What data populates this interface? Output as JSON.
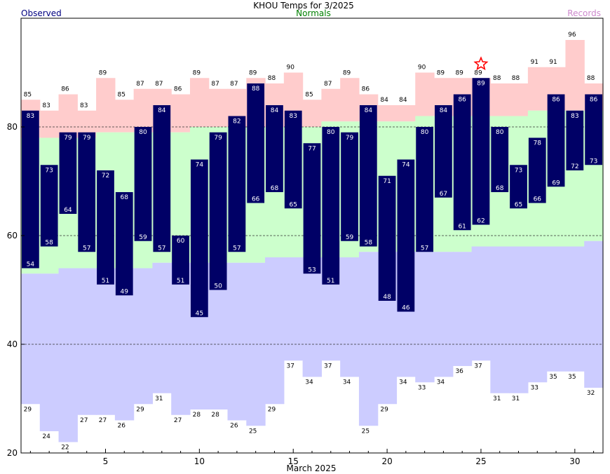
{
  "chart_data": {
    "type": "bar",
    "title": "KHOU Temps for 3/2025",
    "xlabel": "March 2025",
    "ylabel": "",
    "ylim": [
      20,
      100
    ],
    "yticks": [
      20,
      40,
      60,
      80
    ],
    "xticks": [
      5,
      10,
      15,
      20,
      25,
      30
    ],
    "grid_y": [
      40,
      60,
      80
    ],
    "legend": {
      "left": "Observed",
      "center": "Normals",
      "right": "Records"
    },
    "colors": {
      "observed": "#000066",
      "normals": "#ccffcc",
      "records_high": "#ffcccc",
      "records_low": "#ccccff",
      "legend_observed": "#000080",
      "legend_normals": "#008000",
      "legend_records": "#cc88cc",
      "star": "#ff0000"
    },
    "days": [
      1,
      2,
      3,
      4,
      5,
      6,
      7,
      8,
      9,
      10,
      11,
      12,
      13,
      14,
      15,
      16,
      17,
      18,
      19,
      20,
      21,
      22,
      23,
      24,
      25,
      26,
      27,
      28,
      29,
      30,
      31
    ],
    "series": [
      {
        "name": "Observed",
        "high": [
          83,
          73,
          79,
          79,
          72,
          68,
          80,
          84,
          60,
          74,
          79,
          82,
          88,
          84,
          83,
          77,
          80,
          79,
          84,
          71,
          74,
          80,
          84,
          86,
          89,
          80,
          73,
          78,
          86,
          83,
          86
        ],
        "low": [
          54,
          58,
          64,
          57,
          51,
          49,
          59,
          57,
          51,
          45,
          50,
          57,
          66,
          68,
          65,
          53,
          51,
          59,
          58,
          48,
          46,
          57,
          67,
          61,
          62,
          68,
          65,
          66,
          69,
          72,
          73
        ]
      },
      {
        "name": "Normals",
        "high": [
          78,
          78,
          78,
          78,
          79,
          79,
          79,
          79,
          79,
          80,
          80,
          80,
          80,
          80,
          80,
          80,
          81,
          81,
          81,
          81,
          81,
          82,
          82,
          82,
          82,
          82,
          82,
          83,
          83,
          83,
          83
        ],
        "low": [
          53,
          53,
          54,
          54,
          54,
          54,
          54,
          55,
          55,
          55,
          55,
          55,
          55,
          56,
          56,
          56,
          56,
          56,
          57,
          57,
          57,
          57,
          57,
          57,
          58,
          58,
          58,
          58,
          58,
          58,
          59
        ]
      },
      {
        "name": "Records",
        "high": [
          85,
          83,
          86,
          83,
          89,
          85,
          87,
          87,
          86,
          89,
          87,
          87,
          89,
          88,
          90,
          85,
          87,
          89,
          86,
          84,
          84,
          90,
          89,
          89,
          89,
          88,
          88,
          91,
          91,
          96,
          88
        ],
        "low": [
          29,
          24,
          22,
          27,
          27,
          26,
          29,
          31,
          27,
          28,
          28,
          26,
          25,
          29,
          37,
          34,
          37,
          34,
          25,
          29,
          34,
          33,
          34,
          36,
          37,
          31,
          31,
          33,
          35,
          35,
          32
        ]
      }
    ],
    "record_set_days": [
      25
    ]
  }
}
